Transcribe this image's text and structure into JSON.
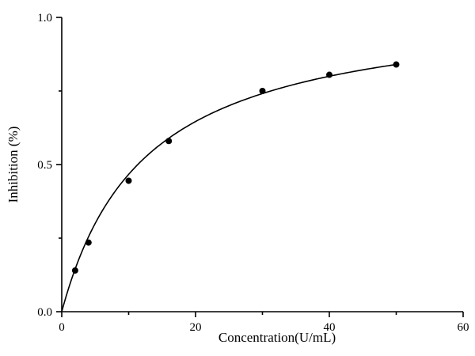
{
  "chart_data": {
    "type": "scatter",
    "title": "",
    "xlabel": "Concentration(U/mL)",
    "ylabel": "Inhibition (%)",
    "xlim": [
      0,
      60
    ],
    "ylim": [
      0,
      1.0
    ],
    "x_ticks": [
      0,
      20,
      40,
      60
    ],
    "x_tick_labels": [
      "0",
      "20",
      "40",
      "60"
    ],
    "x_minor_ticks": [
      10,
      30,
      50
    ],
    "y_ticks": [
      0.0,
      0.5,
      1.0
    ],
    "y_tick_labels": [
      "0.0",
      "0.5",
      "1.0"
    ],
    "y_minor_ticks": [
      0.25,
      0.75
    ],
    "grid": false,
    "legend": null,
    "series": [
      {
        "name": "data",
        "style": "markers",
        "x": [
          2,
          4,
          10,
          16,
          30,
          40,
          50
        ],
        "y": [
          0.14,
          0.235,
          0.445,
          0.58,
          0.75,
          0.805,
          0.84
        ]
      },
      {
        "name": "fit",
        "style": "line",
        "model": "y = Vmax*x/(Km+x)",
        "params": {
          "Vmax": 1.05,
          "Km": 12.5
        }
      }
    ]
  }
}
